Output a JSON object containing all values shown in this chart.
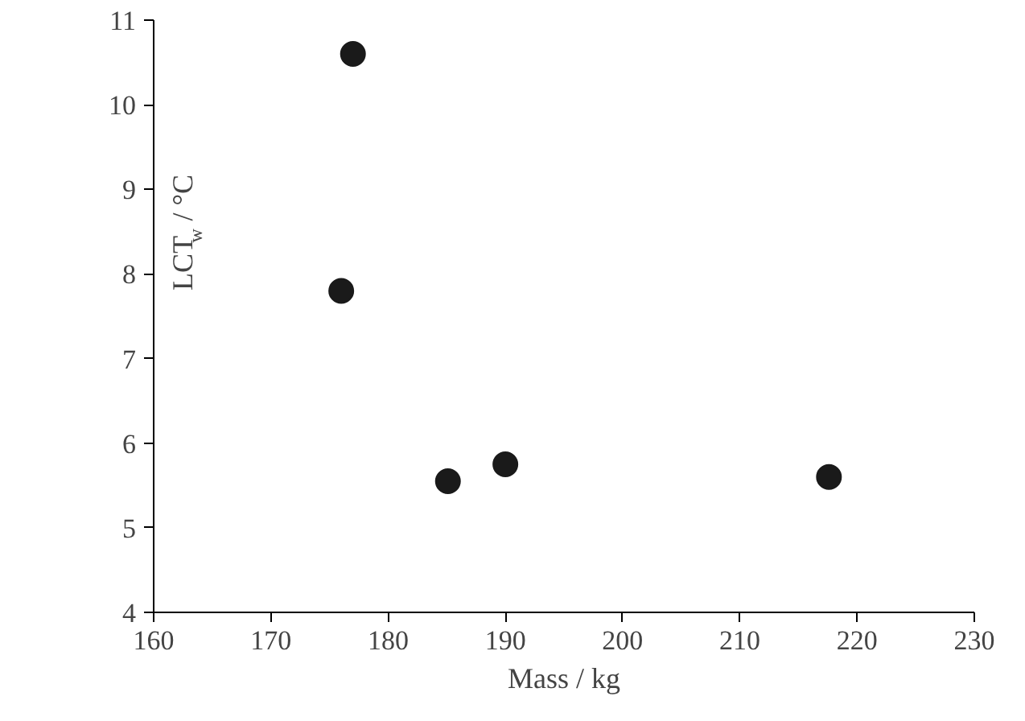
{
  "chart_data": {
    "type": "scatter",
    "xlabel": "Mass / kg",
    "ylabel": "LCT$_{w}$ / °C",
    "x": [
      177.0,
      176.0,
      185.1,
      190.0,
      217.6
    ],
    "series": [
      {
        "color": "#1a1a1a",
        "values": [
          10.6,
          7.8,
          5.55,
          5.75,
          5.6
        ]
      }
    ],
    "xlim": [
      160,
      230
    ],
    "xticks": [
      160,
      170,
      180,
      190,
      200,
      210,
      220,
      230
    ],
    "ylim": [
      4,
      11
    ],
    "yticks": [
      4,
      5,
      6,
      7,
      8,
      9,
      10,
      11
    ],
    "marker": "circle",
    "grid": false
  }
}
